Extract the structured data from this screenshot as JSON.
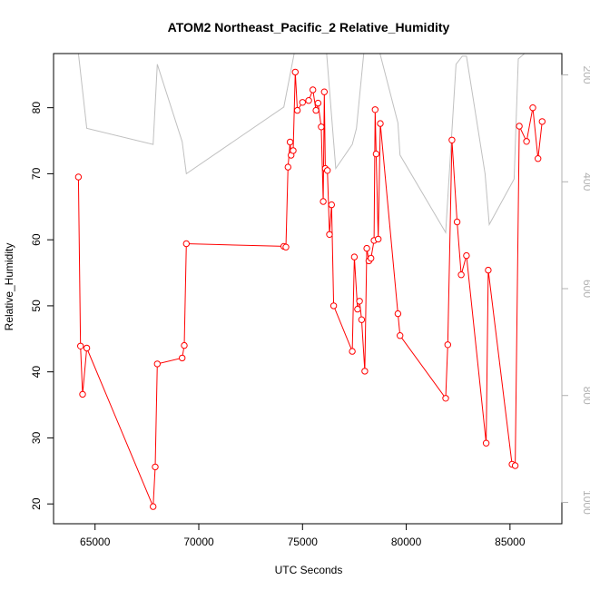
{
  "chart_data": {
    "type": "line",
    "title": "ATOM2 Northeast_Pacific_2 Relative_Humidity",
    "xlabel": "UTC Seconds",
    "ylabel": "Relative_Humidity",
    "xlim": [
      63000,
      87500
    ],
    "ylim": [
      17,
      88.2
    ],
    "y2lim": [
      1040,
      160
    ],
    "y2_reversed": true,
    "x_ticks": [
      65000,
      70000,
      75000,
      80000,
      85000
    ],
    "y_ticks": [
      20,
      30,
      40,
      50,
      60,
      70,
      80
    ],
    "y2_ticks": [
      200,
      400,
      600,
      800,
      1000
    ],
    "grid": false,
    "series": [
      {
        "color": "#ff0000",
        "marker": "circle",
        "axis": "left",
        "x": [
          64200,
          64300,
          64400,
          64600,
          67800,
          67900,
          68000,
          69200,
          69300,
          69400,
          74100,
          74200,
          74300,
          74400,
          74450,
          74550,
          74650,
          74750,
          75000,
          75300,
          75500,
          75650,
          75750,
          75900,
          76000,
          76050,
          76100,
          76200,
          76300,
          76400,
          76500,
          77400,
          77500,
          77650,
          77750,
          77850,
          78000,
          78100,
          78200,
          78300,
          78450,
          78500,
          78550,
          78650,
          78750,
          79600,
          79700,
          81900,
          82000,
          82200,
          82450,
          82650,
          82900,
          83850,
          83950,
          85100,
          85250,
          85450,
          85800,
          86100,
          86350,
          86550
        ],
        "y": [
          69.5,
          43.9,
          36.6,
          43.6,
          19.6,
          25.6,
          41.2,
          42.1,
          44.0,
          59.4,
          59.0,
          58.9,
          71.0,
          74.8,
          72.8,
          73.5,
          85.4,
          79.6,
          80.8,
          81.1,
          82.7,
          79.6,
          80.7,
          77.1,
          65.8,
          82.4,
          70.8,
          70.5,
          60.8,
          65.3,
          50.0,
          43.1,
          57.4,
          49.5,
          50.7,
          47.9,
          40.1,
          58.7,
          56.8,
          57.2,
          59.9,
          79.7,
          73.0,
          60.1,
          77.6,
          48.8,
          45.5,
          36.0,
          44.1,
          75.1,
          62.7,
          54.7,
          57.6,
          29.2,
          55.4,
          26.0,
          25.8,
          77.2,
          74.9,
          80.0,
          72.3,
          77.9
        ]
      },
      {
        "color": "#c0c0c0",
        "marker": "none",
        "axis": "right",
        "x": [
          64200,
          64600,
          67800,
          68000,
          69200,
          69400,
          74100,
          74600,
          75000,
          75500,
          75800,
          76000,
          76600,
          77400,
          77600,
          78000,
          78400,
          78600,
          79600,
          79700,
          81900,
          82400,
          82700,
          82900,
          83800,
          84000,
          85200,
          85400,
          86000,
          86400,
          86700
        ],
        "y": [
          160,
          300,
          330,
          180,
          325,
          385,
          260,
          160,
          130,
          130,
          150,
          80,
          375,
          330,
          300,
          140,
          80,
          140,
          290,
          350,
          495,
          180,
          165,
          165,
          385,
          480,
          395,
          170,
          150,
          120,
          100
        ]
      }
    ]
  }
}
